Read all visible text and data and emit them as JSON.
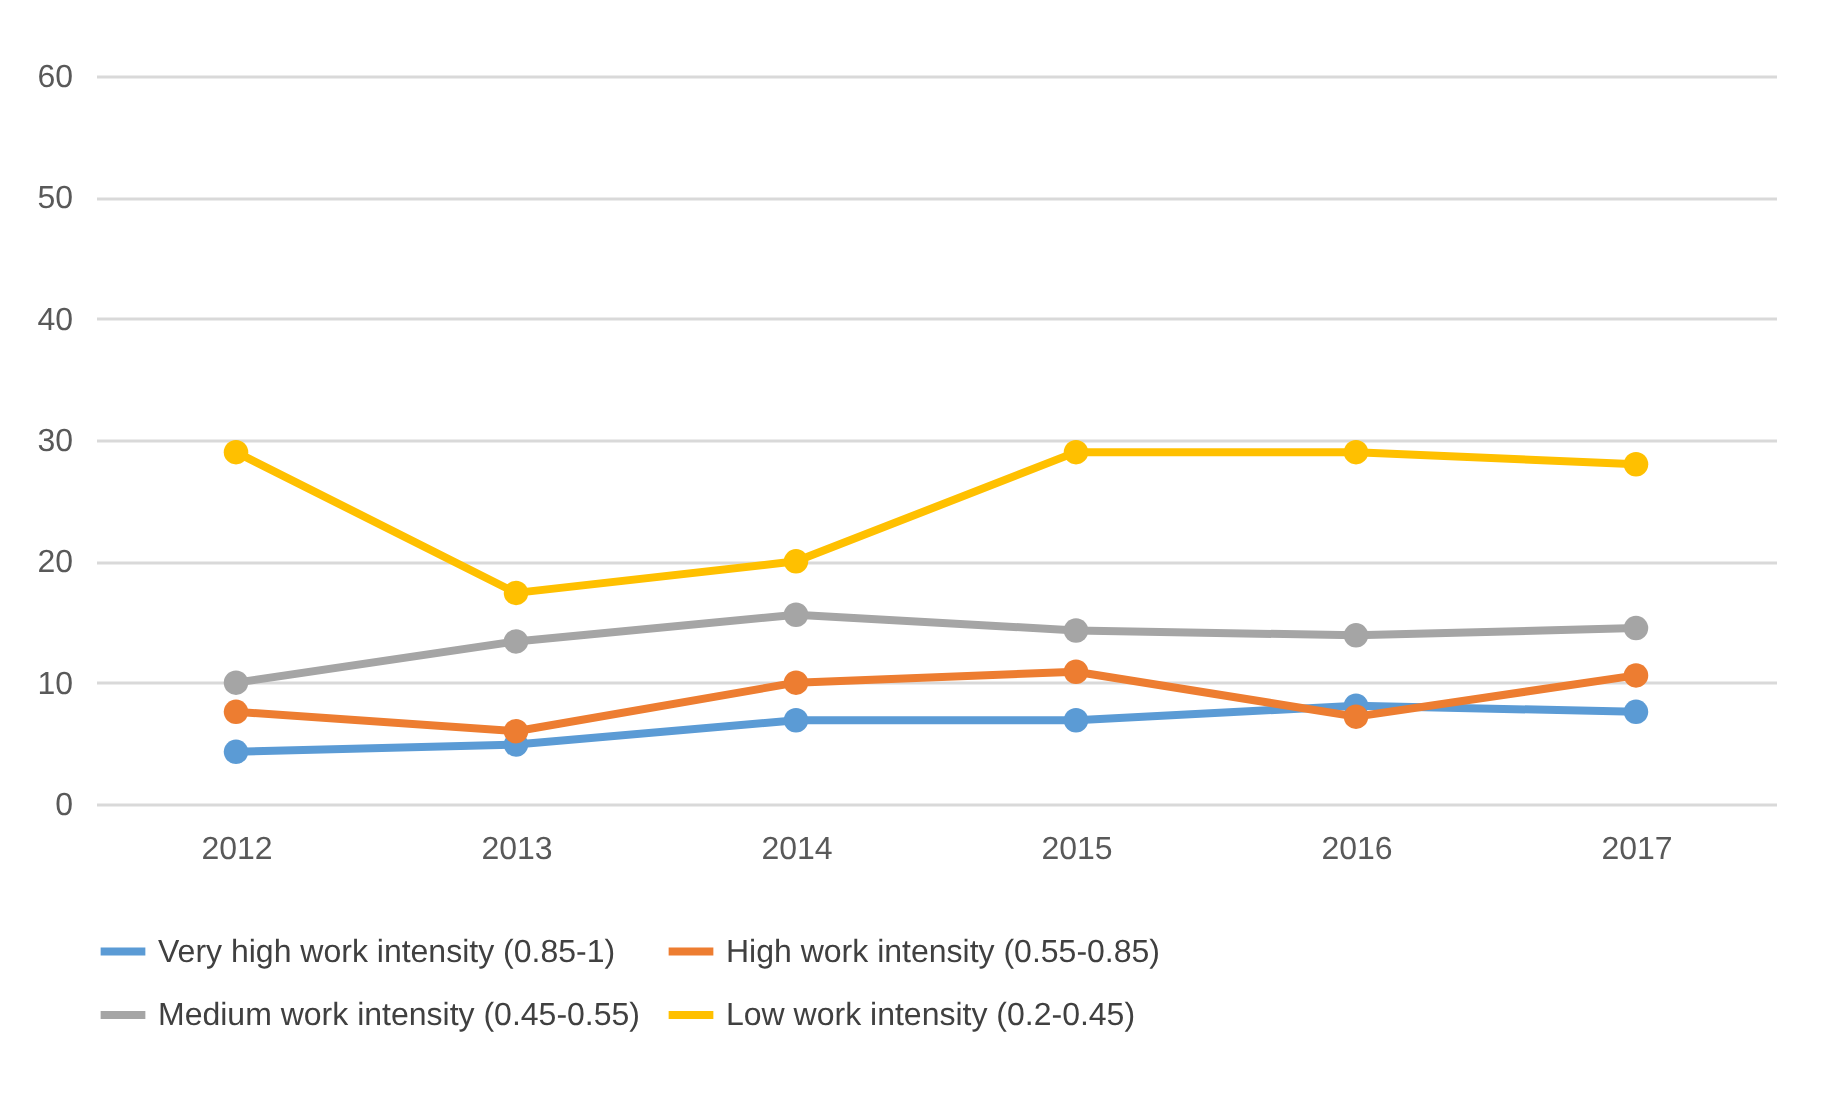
{
  "chart_data": {
    "type": "line",
    "categories": [
      "2012",
      "2013",
      "2014",
      "2015",
      "2016",
      "2017"
    ],
    "series": [
      {
        "name": "Very high work intensity (0.85-1)",
        "color": "#5b9bd5",
        "values": [
          4.3,
          4.9,
          6.9,
          6.9,
          8.1,
          7.6
        ]
      },
      {
        "name": "High work intensity (0.55-0.85)",
        "color": "#ed7d31",
        "values": [
          7.6,
          6,
          10,
          10.9,
          7.2,
          10.6
        ]
      },
      {
        "name": "Medium work intensity (0.45-0.55)",
        "color": "#a5a5a5",
        "values": [
          10,
          13.4,
          15.6,
          14.3,
          13.9,
          14.5
        ]
      },
      {
        "name": "Low work intensity (0.2-0.45)",
        "color": "#ffc000",
        "values": [
          29,
          17.4,
          20,
          29,
          29,
          28
        ]
      }
    ],
    "ylim": [
      0,
      60
    ],
    "yticks": [
      0,
      10,
      20,
      30,
      40,
      50,
      60
    ],
    "grid": "y",
    "legend": "bottom",
    "marker": "circle",
    "line_style": "solid"
  }
}
